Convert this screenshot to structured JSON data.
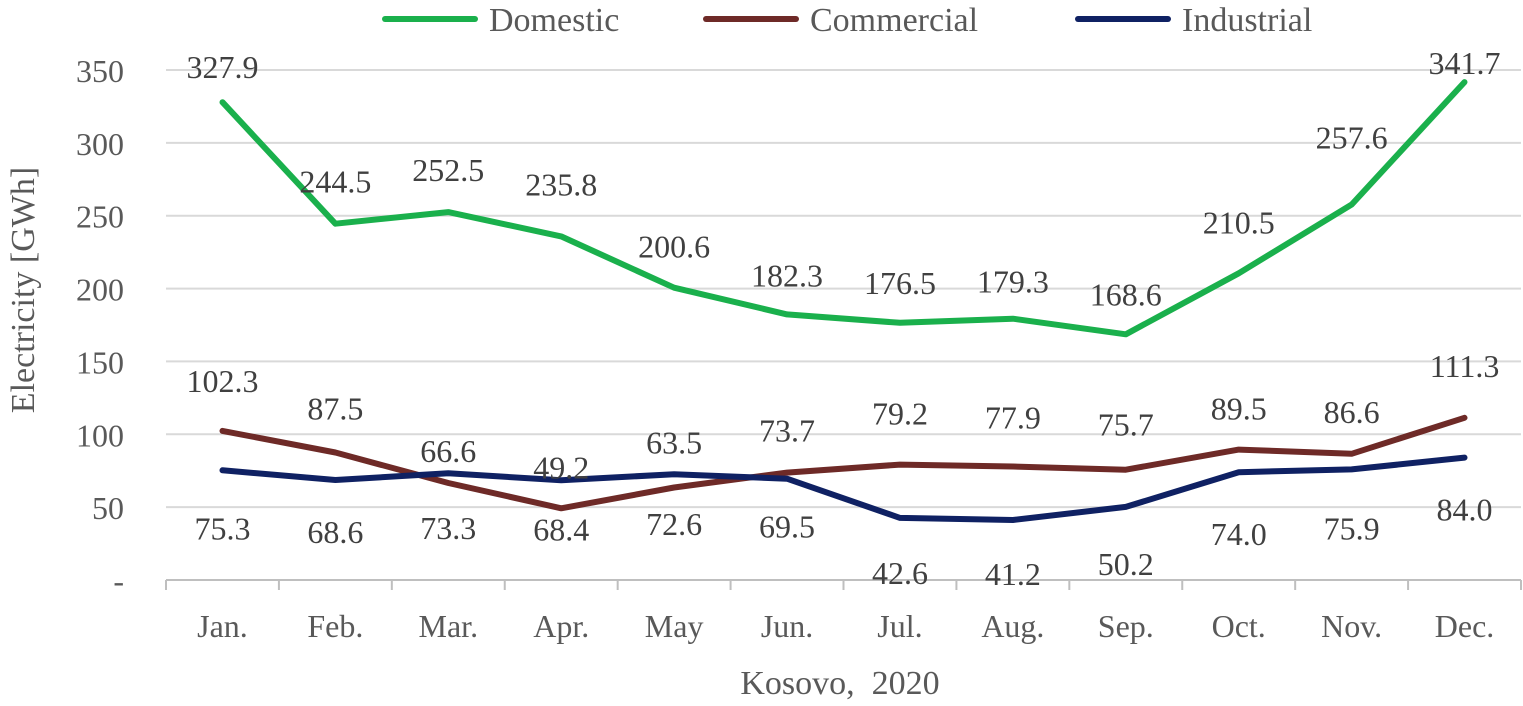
{
  "chart_data": {
    "type": "line",
    "title": "",
    "xlabel": "Kosovo,  2020",
    "ylabel": "Electricity [GWh]",
    "categories": [
      "Jan.",
      "Feb.",
      "Mar.",
      "Apr.",
      "May",
      "Jun.",
      "Jul.",
      "Aug.",
      "Sep.",
      "Oct.",
      "Nov.",
      "Dec."
    ],
    "ylim": [
      0,
      350
    ],
    "yticks": [
      0,
      50,
      100,
      150,
      200,
      250,
      300,
      350
    ],
    "ytick_labels": [
      "-",
      "50",
      "100",
      "150",
      "200",
      "250",
      "300",
      "350"
    ],
    "grid": true,
    "legend_position": "top",
    "series": [
      {
        "name": "Domestic",
        "color": "#1ab04c",
        "values": [
          327.9,
          244.5,
          252.5,
          235.8,
          200.6,
          182.3,
          176.5,
          179.3,
          168.6,
          210.5,
          257.6,
          341.7
        ],
        "labels": [
          "327.9",
          "244.5",
          "252.5",
          "235.8",
          "200.6",
          "182.3",
          "176.5",
          "179.3",
          "168.6",
          "210.5",
          "257.6",
          "341.7"
        ]
      },
      {
        "name": "Commercial",
        "color": "#6e2a27",
        "values": [
          102.3,
          87.5,
          66.6,
          49.2,
          63.5,
          73.7,
          79.2,
          77.9,
          75.7,
          89.5,
          86.6,
          111.3
        ],
        "labels": [
          "102.3",
          "87.5",
          "66.6",
          "49.2",
          "63.5",
          "73.7",
          "79.2",
          "77.9",
          "75.7",
          "89.5",
          "86.6",
          "111.3"
        ]
      },
      {
        "name": "Industrial",
        "color": "#0f2163",
        "values": [
          75.3,
          68.6,
          73.3,
          68.4,
          72.6,
          69.5,
          42.6,
          41.2,
          50.2,
          74.0,
          75.9,
          84.0
        ],
        "labels": [
          "75.3",
          "68.6",
          "73.3",
          "68.4",
          "72.6",
          "69.5",
          "42.6",
          "41.2",
          "50.2",
          "74.0",
          "75.9",
          "84.0"
        ]
      }
    ]
  }
}
